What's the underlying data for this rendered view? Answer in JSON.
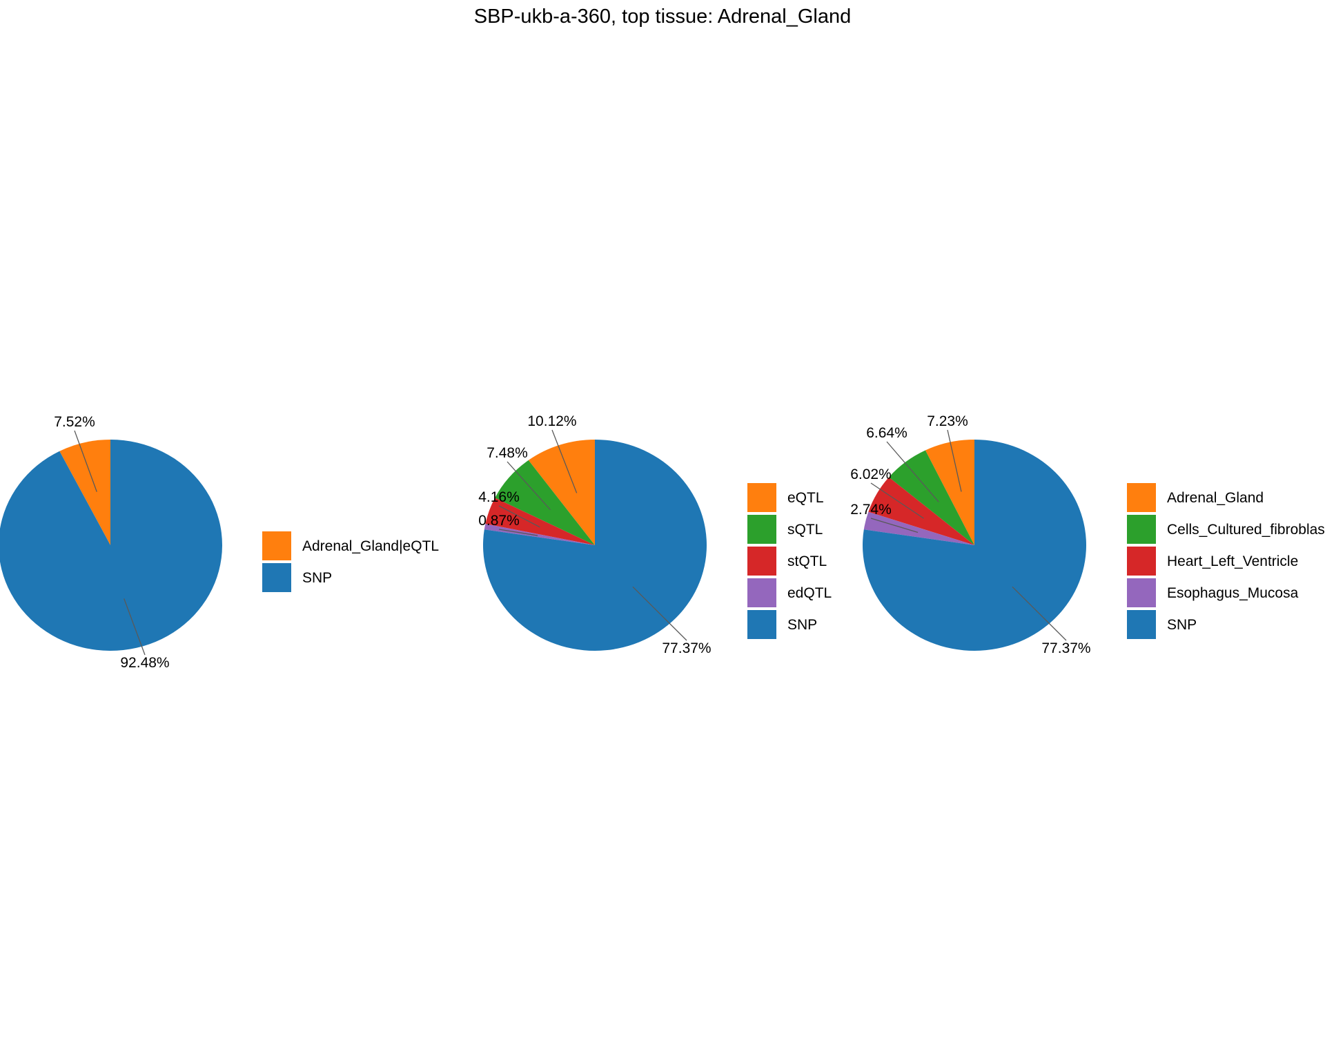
{
  "title": "SBP-ukb-a-360, top tissue: Adrenal_Gland",
  "colors": {
    "SNP": "#1f77b4",
    "orange": "#ff7f0e",
    "green": "#2ca02c",
    "red": "#d62728",
    "purple": "#9467bd",
    "leader": "#595959"
  },
  "chart_data": [
    {
      "type": "pie",
      "slices": [
        {
          "name": "Adrenal_Gland|eQTL",
          "value": 7.52,
          "label": "7.52%",
          "color": "#ff7f0e"
        },
        {
          "name": "SNP",
          "value": 92.48,
          "label": "92.48%",
          "color": "#1f77b4"
        }
      ],
      "legend": [
        "Adrenal_Gland|eQTL",
        "SNP"
      ],
      "legend_placement": "right"
    },
    {
      "type": "pie",
      "slices": [
        {
          "name": "eQTL",
          "value": 10.12,
          "label": "10.12%",
          "color": "#ff7f0e"
        },
        {
          "name": "sQTL",
          "value": 7.48,
          "label": "7.48%",
          "color": "#2ca02c"
        },
        {
          "name": "stQTL",
          "value": 4.16,
          "label": "4.16%",
          "color": "#d62728"
        },
        {
          "name": "edQTL",
          "value": 0.87,
          "label": "0.87%",
          "color": "#9467bd"
        },
        {
          "name": "SNP",
          "value": 77.37,
          "label": "77.37%",
          "color": "#1f77b4"
        }
      ],
      "legend": [
        "eQTL",
        "sQTL",
        "stQTL",
        "edQTL",
        "SNP"
      ],
      "legend_placement": "right"
    },
    {
      "type": "pie",
      "slices": [
        {
          "name": "Adrenal_Gland",
          "value": 7.23,
          "label": "7.23%",
          "color": "#ff7f0e"
        },
        {
          "name": "Cells_Cultured_fibroblasts",
          "value": 6.64,
          "label": "6.64%",
          "color": "#2ca02c"
        },
        {
          "name": "Heart_Left_Ventricle",
          "value": 6.02,
          "label": "6.02%",
          "color": "#d62728"
        },
        {
          "name": "Esophagus_Mucosa",
          "value": 2.74,
          "label": "2.74%",
          "color": "#9467bd"
        },
        {
          "name": "SNP",
          "value": 77.37,
          "label": "77.37%",
          "color": "#1f77b4"
        }
      ],
      "legend": [
        "Adrenal_Gland",
        "Cells_Cultured_fibroblasts",
        "Heart_Left_Ventricle",
        "Esophagus_Mucosa",
        "SNP"
      ],
      "legend_placement": "right"
    }
  ]
}
